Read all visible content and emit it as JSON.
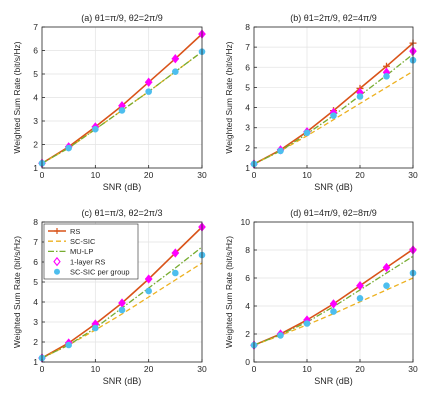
{
  "colors": {
    "rs": "#d95319",
    "scsic": "#edb120",
    "mulp": "#77ac30",
    "onelayer": "#ff00ff",
    "pergroup": "#4dbeee",
    "grid": "#e3e3e3",
    "axis": "#262626"
  },
  "legend": {
    "placement": "top-left (panel c)",
    "entries": [
      "RS",
      "SC-SIC",
      "MU-LP",
      "1-layer RS",
      "SC-SIC per group"
    ]
  },
  "chart_data": [
    {
      "type": "line",
      "title": "(a) θ1=π/9, θ2=2π/9",
      "xlabel": "SNR (dB)",
      "ylabel": "Weighted Sum Rate (bit/s/Hz)",
      "xlim": [
        0,
        30
      ],
      "ylim": [
        1,
        7
      ],
      "xticks": [
        0,
        10,
        20,
        30
      ],
      "yticks": [
        1,
        2,
        3,
        4,
        5,
        6,
        7
      ],
      "grid": true,
      "x": [
        0,
        5,
        10,
        15,
        20,
        25,
        30
      ],
      "series": [
        {
          "name": "RS",
          "values": [
            1.2,
            1.9,
            2.75,
            3.65,
            4.65,
            5.65,
            6.7
          ]
        },
        {
          "name": "SC-SIC",
          "values": [
            1.2,
            1.85,
            2.65,
            3.45,
            4.25,
            5.1,
            5.95
          ]
        },
        {
          "name": "MU-LP",
          "values": [
            1.2,
            1.85,
            2.65,
            3.45,
            4.25,
            5.1,
            5.95
          ]
        },
        {
          "name": "1-layer RS",
          "values": [
            1.2,
            1.9,
            2.75,
            3.65,
            4.65,
            5.65,
            6.7
          ]
        },
        {
          "name": "SC-SIC per group",
          "values": [
            1.2,
            1.85,
            2.65,
            3.45,
            4.25,
            5.1,
            5.95
          ]
        }
      ]
    },
    {
      "type": "line",
      "title": "(b) θ1=2π/9, θ2=4π/9",
      "xlabel": "SNR (dB)",
      "ylabel": "Weighted Sum Rate (bit/s/Hz)",
      "xlim": [
        0,
        30
      ],
      "ylim": [
        1,
        8
      ],
      "xticks": [
        0,
        10,
        20,
        30
      ],
      "yticks": [
        1,
        2,
        3,
        4,
        5,
        6,
        7,
        8
      ],
      "grid": true,
      "x": [
        0,
        5,
        10,
        15,
        20,
        25,
        30
      ],
      "series": [
        {
          "name": "RS",
          "values": [
            1.2,
            1.9,
            2.8,
            3.85,
            4.95,
            6.05,
            7.2
          ]
        },
        {
          "name": "SC-SIC",
          "values": [
            1.2,
            1.85,
            2.6,
            3.4,
            4.2,
            5.0,
            5.8
          ]
        },
        {
          "name": "MU-LP",
          "values": [
            1.2,
            1.85,
            2.7,
            3.6,
            4.6,
            5.6,
            6.65
          ]
        },
        {
          "name": "1-layer RS",
          "values": [
            1.2,
            1.9,
            2.8,
            3.75,
            4.75,
            5.75,
            6.8
          ]
        },
        {
          "name": "SC-SIC per group",
          "values": [
            1.2,
            1.85,
            2.75,
            3.6,
            4.55,
            5.55,
            6.35
          ]
        }
      ]
    },
    {
      "type": "line",
      "title": "(c) θ1=π/3, θ2=2π/3",
      "xlabel": "SNR (dB)",
      "ylabel": "Weighted Sum Rate (bit/s/Hz)",
      "xlim": [
        0,
        30
      ],
      "ylim": [
        1,
        8
      ],
      "xticks": [
        0,
        10,
        20,
        30
      ],
      "yticks": [
        1,
        2,
        3,
        4,
        5,
        6,
        7,
        8
      ],
      "grid": true,
      "x": [
        0,
        5,
        10,
        15,
        20,
        25,
        30
      ],
      "series": [
        {
          "name": "RS",
          "values": [
            1.2,
            1.95,
            2.9,
            3.95,
            5.15,
            6.45,
            7.75
          ]
        },
        {
          "name": "SC-SIC",
          "values": [
            1.2,
            1.85,
            2.6,
            3.4,
            4.25,
            5.1,
            5.95
          ]
        },
        {
          "name": "MU-LP",
          "values": [
            1.2,
            1.85,
            2.7,
            3.7,
            4.7,
            5.7,
            6.75
          ]
        },
        {
          "name": "1-layer RS",
          "values": [
            1.2,
            1.95,
            2.9,
            3.95,
            5.15,
            6.45,
            7.75
          ]
        },
        {
          "name": "SC-SIC per group",
          "values": [
            1.2,
            1.85,
            2.7,
            3.6,
            4.55,
            5.45,
            6.35
          ]
        }
      ]
    },
    {
      "type": "line",
      "title": "(d) θ1=4π/9, θ2=8π/9",
      "xlabel": "SNR (dB)",
      "ylabel": "Weighted Sum Rate (bit/s/Hz)",
      "xlim": [
        0,
        30
      ],
      "ylim": [
        0,
        10
      ],
      "xticks": [
        0,
        10,
        20,
        30
      ],
      "yticks": [
        0,
        2,
        4,
        6,
        8,
        10
      ],
      "grid": true,
      "x": [
        0,
        5,
        10,
        15,
        20,
        25,
        30
      ],
      "series": [
        {
          "name": "RS",
          "values": [
            1.2,
            2.0,
            3.0,
            4.15,
            5.45,
            6.75,
            8.05
          ]
        },
        {
          "name": "SC-SIC",
          "values": [
            1.2,
            1.9,
            2.65,
            3.45,
            4.3,
            5.15,
            6.0
          ]
        },
        {
          "name": "MU-LP",
          "values": [
            1.2,
            1.95,
            2.85,
            3.95,
            5.15,
            6.35,
            7.55
          ]
        },
        {
          "name": "1-layer RS",
          "values": [
            1.2,
            2.0,
            3.0,
            4.15,
            5.45,
            6.75,
            8.0
          ]
        },
        {
          "name": "SC-SIC per group",
          "values": [
            1.2,
            1.9,
            2.75,
            3.6,
            4.55,
            5.45,
            6.35
          ]
        }
      ]
    }
  ]
}
